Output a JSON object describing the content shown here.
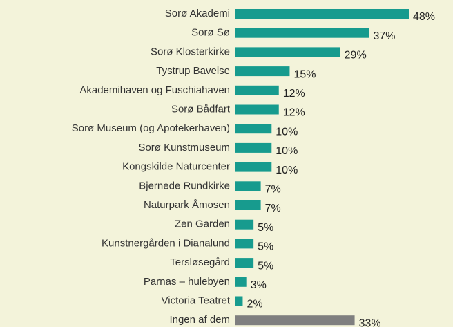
{
  "chart_data": {
    "type": "bar",
    "orientation": "horizontal",
    "categories": [
      "Sorø Akademi",
      "Sorø Sø",
      "Sorø Klosterkirke",
      "Tystrup Bavelse",
      "Akademihaven og Fuschiahaven",
      "Sorø Bådfart",
      "Sorø Museum (og Apotekerhaven)",
      "Sorø Kunstmuseum",
      "Kongskilde Naturcenter",
      "Bjernede Rundkirke",
      "Naturpark Åmosen",
      "Zen Garden",
      "Kunstnergården i Dianalund",
      "Tersløsegård",
      "Parnas – hulebyen",
      "Victoria Teatret",
      "Ingen af dem"
    ],
    "values": [
      48,
      37,
      29,
      15,
      12,
      12,
      10,
      10,
      10,
      7,
      7,
      5,
      5,
      5,
      3,
      2,
      33
    ],
    "value_labels": [
      "48%",
      "37%",
      "29%",
      "15%",
      "12%",
      "12%",
      "10%",
      "10%",
      "10%",
      "7%",
      "7%",
      "5%",
      "5%",
      "5%",
      "3%",
      "2%",
      "33%"
    ],
    "colors": [
      "#179b8e",
      "#179b8e",
      "#179b8e",
      "#179b8e",
      "#179b8e",
      "#179b8e",
      "#179b8e",
      "#179b8e",
      "#179b8e",
      "#179b8e",
      "#179b8e",
      "#179b8e",
      "#179b8e",
      "#179b8e",
      "#179b8e",
      "#179b8e",
      "#7f7f7f"
    ]
  }
}
